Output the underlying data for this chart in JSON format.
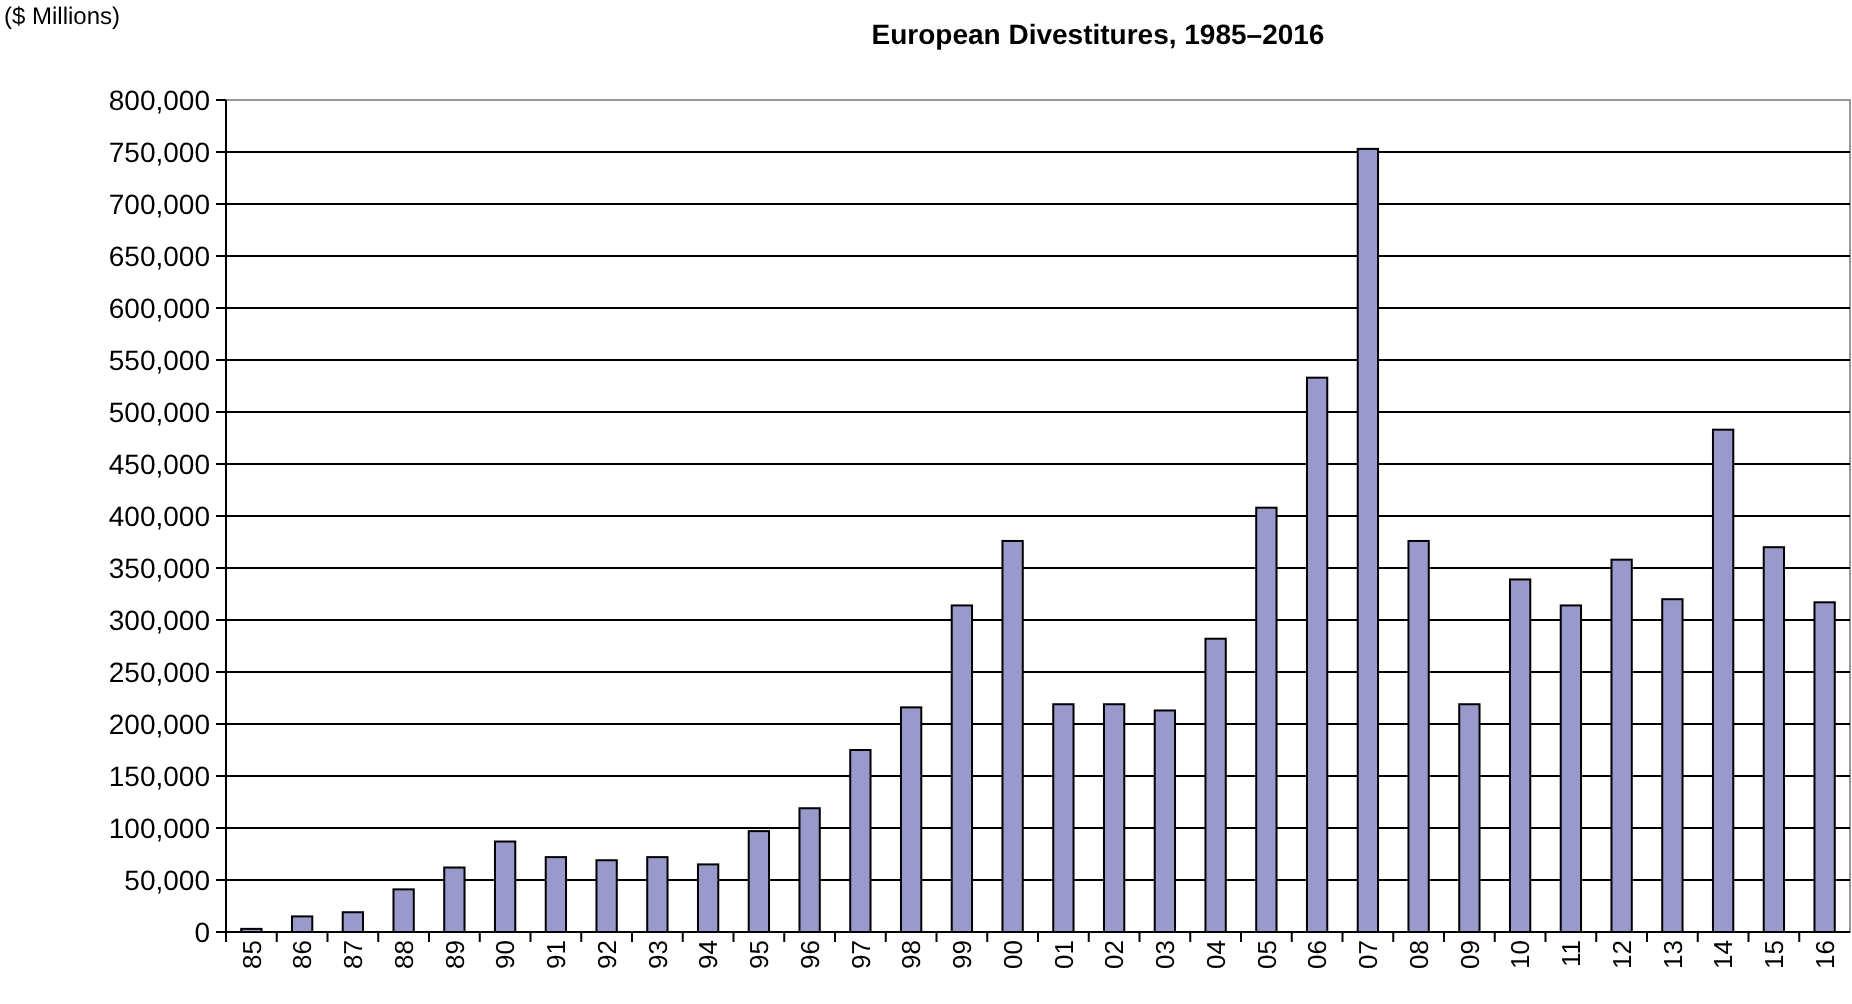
{
  "chart_data": {
    "type": "bar",
    "title": "European Divestitures, 1985–2016",
    "ylabel": "($ Millions)",
    "categories": [
      "85",
      "86",
      "87",
      "88",
      "89",
      "90",
      "91",
      "92",
      "93",
      "94",
      "95",
      "96",
      "97",
      "98",
      "99",
      "00",
      "01",
      "02",
      "03",
      "04",
      "05",
      "06",
      "07",
      "08",
      "09",
      "10",
      "11",
      "12",
      "13",
      "14",
      "15",
      "16"
    ],
    "values": [
      3000,
      15000,
      19000,
      41000,
      62000,
      87000,
      72000,
      69000,
      72000,
      65000,
      97000,
      119000,
      175000,
      216000,
      314000,
      376000,
      219000,
      219000,
      213000,
      282000,
      408000,
      533000,
      753000,
      376000,
      219000,
      339000,
      314000,
      358000,
      320000,
      483000,
      370000,
      317000
    ],
    "color": "#9999cc",
    "ylim": [
      0,
      800000
    ],
    "yticks": [
      {
        "value": 0,
        "label": "0"
      },
      {
        "value": 50000,
        "label": "50,000"
      },
      {
        "value": 100000,
        "label": "100,000"
      },
      {
        "value": 150000,
        "label": "150,000"
      },
      {
        "value": 200000,
        "label": "200,000"
      },
      {
        "value": 250000,
        "label": "250,000"
      },
      {
        "value": 300000,
        "label": "300,000"
      },
      {
        "value": 350000,
        "label": "350,000"
      },
      {
        "value": 400000,
        "label": "400,000"
      },
      {
        "value": 450000,
        "label": "450,000"
      },
      {
        "value": 500000,
        "label": "500,000"
      },
      {
        "value": 550000,
        "label": "550,000"
      },
      {
        "value": 600000,
        "label": "600,000"
      },
      {
        "value": 650000,
        "label": "650,000"
      },
      {
        "value": 700000,
        "label": "700,000"
      },
      {
        "value": 750000,
        "label": "750,000"
      },
      {
        "value": 800000,
        "label": "800,000"
      }
    ],
    "grid": "y"
  }
}
